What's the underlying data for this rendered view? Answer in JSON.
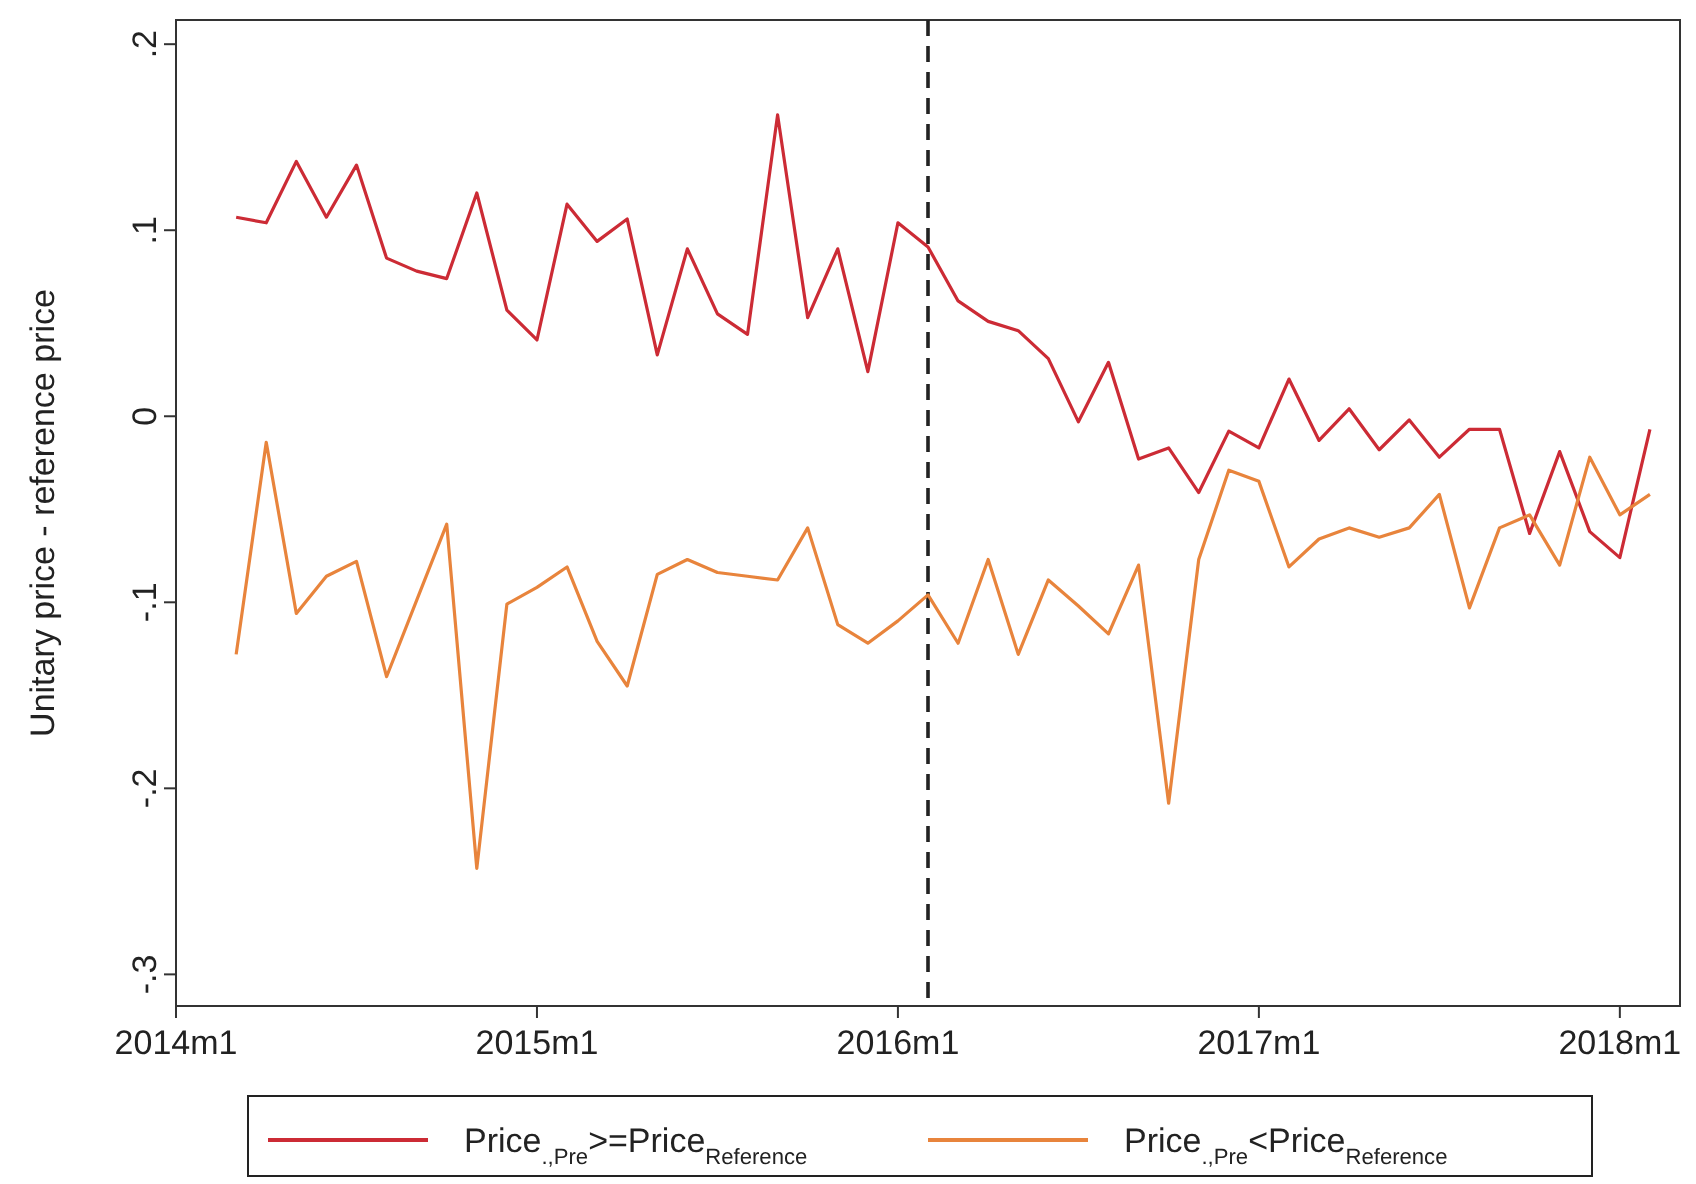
{
  "chart_data": {
    "type": "line",
    "ylabel": "Unitary price - reference price",
    "x": [
      "2014-03",
      "2014-04",
      "2014-05",
      "2014-06",
      "2014-07",
      "2014-08",
      "2014-09",
      "2014-10",
      "2014-11",
      "2014-12",
      "2015-01",
      "2015-02",
      "2015-03",
      "2015-04",
      "2015-05",
      "2015-06",
      "2015-07",
      "2015-08",
      "2015-09",
      "2015-10",
      "2015-11",
      "2015-12",
      "2016-01",
      "2016-02",
      "2016-03",
      "2016-04",
      "2016-05",
      "2016-06",
      "2016-07",
      "2016-08",
      "2016-09",
      "2016-10",
      "2016-11",
      "2016-12",
      "2017-01",
      "2017-02",
      "2017-03",
      "2017-04",
      "2017-05",
      "2017-06",
      "2017-07",
      "2017-08",
      "2017-09",
      "2017-10",
      "2017-11",
      "2017-12",
      "2018-01",
      "2018-02"
    ],
    "series": [
      {
        "name": "Price$_{.,Pre}$>=Price$_{Reference}$",
        "color": "#cc2b35",
        "values": [
          0.107,
          0.104,
          0.137,
          0.107,
          0.135,
          0.085,
          0.078,
          0.074,
          0.12,
          0.057,
          0.041,
          0.114,
          0.094,
          0.106,
          0.033,
          0.09,
          0.055,
          0.044,
          0.162,
          0.053,
          0.09,
          0.024,
          0.104,
          0.091,
          0.062,
          0.051,
          0.046,
          0.031,
          -0.003,
          0.029,
          -0.023,
          -0.017,
          -0.041,
          -0.008,
          -0.017,
          0.02,
          -0.013,
          0.004,
          -0.018,
          -0.002,
          -0.022,
          -0.007,
          -0.007,
          -0.063,
          -0.019,
          -0.062,
          -0.076,
          -0.007
        ]
      },
      {
        "name": "Price$_{.,Pre}$<Price$_{Reference}$",
        "color": "#e8843c",
        "values": [
          -0.128,
          -0.014,
          -0.106,
          -0.086,
          -0.078,
          -0.14,
          -0.099,
          -0.058,
          -0.243,
          -0.101,
          -0.092,
          -0.081,
          -0.121,
          -0.145,
          -0.085,
          -0.077,
          -0.084,
          -0.086,
          -0.088,
          -0.06,
          -0.112,
          -0.122,
          -0.11,
          -0.096,
          -0.122,
          -0.077,
          -0.128,
          -0.088,
          -0.102,
          -0.117,
          -0.08,
          -0.208,
          -0.077,
          -0.029,
          -0.035,
          -0.081,
          -0.066,
          -0.06,
          -0.065,
          -0.06,
          -0.042,
          -0.103,
          -0.06,
          -0.053,
          -0.08,
          -0.022,
          -0.053,
          -0.042
        ]
      }
    ],
    "xlim": [
      "2014-01",
      "2018-03"
    ],
    "xticks": [
      {
        "value": "2014-01",
        "label": "2014m1"
      },
      {
        "value": "2015-01",
        "label": "2015m1"
      },
      {
        "value": "2016-01",
        "label": "2016m1"
      },
      {
        "value": "2017-01",
        "label": "2017m1"
      },
      {
        "value": "2018-01",
        "label": "2018m1"
      }
    ],
    "ylim": [
      -0.317,
      0.213
    ],
    "yticks": [
      {
        "value": 0.2,
        "label": ".2"
      },
      {
        "value": 0.1,
        "label": ".1"
      },
      {
        "value": 0,
        "label": "0"
      },
      {
        "value": -0.1,
        "label": "-.1"
      },
      {
        "value": -0.2,
        "label": "-.2"
      },
      {
        "value": -0.3,
        "label": "-.3"
      }
    ],
    "ref_lines": [
      {
        "axis": "x",
        "value": "2016-02",
        "line_style": "dashed",
        "color": "#222222"
      }
    ],
    "legend": "bottom",
    "grid": false,
    "marker": "none",
    "line_style": "solid"
  }
}
